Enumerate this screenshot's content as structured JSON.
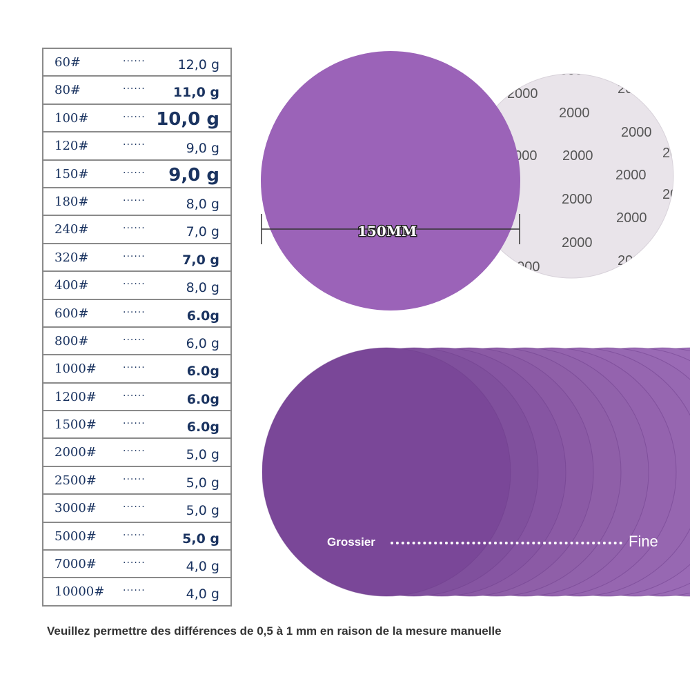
{
  "table": {
    "rows": [
      {
        "grit": "60#",
        "dots": "······",
        "weight": "12,0 g",
        "style": "normal"
      },
      {
        "grit": "80#",
        "dots": "······",
        "weight": "11,0 g",
        "style": "bold"
      },
      {
        "grit": "100#",
        "dots": "······",
        "weight": "10,0 g",
        "style": "big"
      },
      {
        "grit": "120#",
        "dots": "······",
        "weight": "9,0 g",
        "style": "normal"
      },
      {
        "grit": "150#",
        "dots": "······",
        "weight": "9,0 g",
        "style": "big"
      },
      {
        "grit": "180#",
        "dots": "······",
        "weight": "8,0 g",
        "style": "normal"
      },
      {
        "grit": "240#",
        "dots": "······",
        "weight": "7,0 g",
        "style": "normal"
      },
      {
        "grit": "320#",
        "dots": "······",
        "weight": "7,0 g",
        "style": "bold"
      },
      {
        "grit": "400#",
        "dots": "······",
        "weight": "8,0 g",
        "style": "normal"
      },
      {
        "grit": "600#",
        "dots": "······",
        "weight": "6.0g",
        "style": "bold"
      },
      {
        "grit": "800#",
        "dots": "······",
        "weight": "6,0 g",
        "style": "normal"
      },
      {
        "grit": "1000#",
        "dots": "······",
        "weight": "6.0g",
        "style": "bold"
      },
      {
        "grit": "1200#",
        "dots": "······",
        "weight": "6.0g",
        "style": "bold"
      },
      {
        "grit": "1500#",
        "dots": "······",
        "weight": "6.0g",
        "style": "bold"
      },
      {
        "grit": "2000#",
        "dots": "······",
        "weight": "5,0 g",
        "style": "normal"
      },
      {
        "grit": "2500#",
        "dots": "······",
        "weight": "5,0 g",
        "style": "normal"
      },
      {
        "grit": "3000#",
        "dots": "······",
        "weight": "5,0 g",
        "style": "normal"
      },
      {
        "grit": "5000#",
        "dots": "······",
        "weight": "5,0 g",
        "style": "bold"
      },
      {
        "grit": "7000#",
        "dots": "······",
        "weight": "4,0 g",
        "style": "normal"
      },
      {
        "grit": "10000#",
        "dots": "······",
        "weight": "4,0 g",
        "style": "normal"
      }
    ]
  },
  "disc": {
    "diameter_label": "150MM",
    "back_print": "2000",
    "front_color": "#9b63b8",
    "back_color": "#e9e4ea"
  },
  "grade": {
    "coarse_label": "Grossier",
    "fine_label": "Fine"
  },
  "note": "Veuillez permettre des différences de 0,5 à 1 mm en raison de la mesure manuelle"
}
